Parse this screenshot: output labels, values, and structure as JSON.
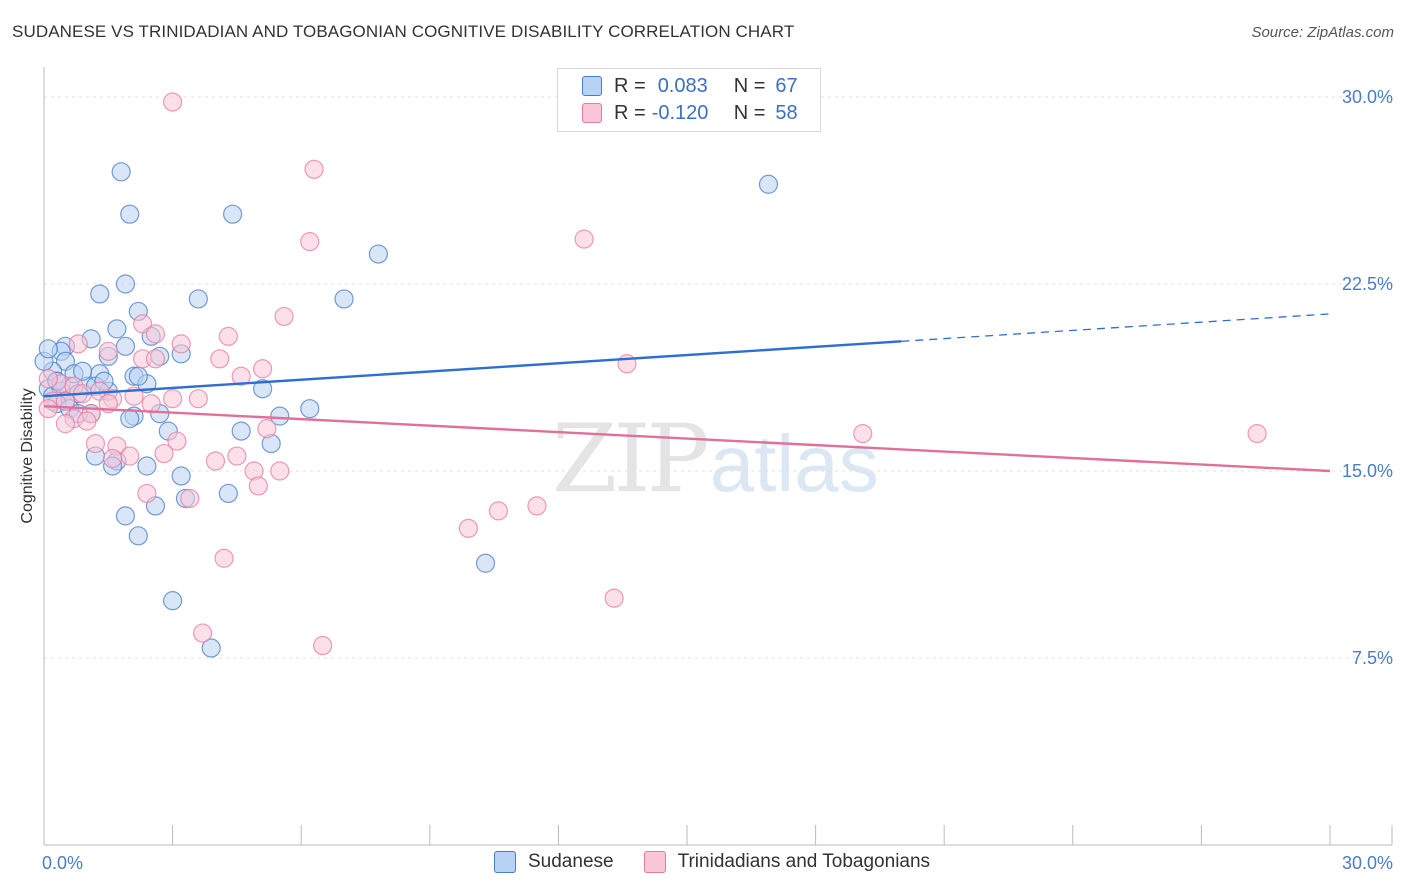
{
  "header": {
    "title": "SUDANESE VS TRINIDADIAN AND TOBAGONIAN COGNITIVE DISABILITY CORRELATION CHART",
    "source": "Source: ZipAtlas.com"
  },
  "watermark": {
    "zip": "ZIP",
    "atlas": "atlas"
  },
  "colors": {
    "blue": "#4a7cc7",
    "blue_fill": "#b8d2f3",
    "blue_line": "#2f6fd1",
    "pink": "#e87aa0",
    "pink_fill": "#f8c6d7",
    "pink_line": "#e0709a"
  },
  "legend": {
    "rows": [
      {
        "r_label": "R =",
        "r_value": "0.083",
        "n_label": "N =",
        "n_value": "67"
      },
      {
        "r_label": "R =",
        "r_value": "-0.120",
        "n_label": "N =",
        "n_value": "58"
      }
    ]
  },
  "bottom_legend": {
    "items": [
      {
        "label": "Sudanese"
      },
      {
        "label": "Trinidadians and Tobagonians"
      }
    ]
  },
  "chart_data": {
    "type": "scatter",
    "title": "SUDANESE VS TRINIDADIAN AND TOBAGONIAN COGNITIVE DISABILITY CORRELATION CHART",
    "xlabel": "",
    "ylabel": "Cognitive Disability",
    "xlim": [
      0,
      30
    ],
    "ylim": [
      0,
      31.5
    ],
    "x_tick_labels": [
      "0.0%",
      "30.0%"
    ],
    "y_ticks": [
      {
        "value": 30.0,
        "label": "30.0%"
      },
      {
        "value": 22.5,
        "label": "22.5%"
      },
      {
        "value": 15.0,
        "label": "15.0%"
      },
      {
        "value": 7.5,
        "label": "7.5%"
      }
    ],
    "series": [
      {
        "name": "Sudanese",
        "R": 0.083,
        "N": 67,
        "trend": {
          "x0": 0.0,
          "y0": 18.0,
          "x1": 20.0,
          "y1": 20.2,
          "dash_to_x": 30.0,
          "dash_to_y": 21.3
        },
        "points": [
          [
            1.8,
            27.0
          ],
          [
            16.9,
            26.5
          ],
          [
            2.0,
            25.3
          ],
          [
            4.4,
            25.3
          ],
          [
            7.8,
            23.7
          ],
          [
            1.9,
            22.5
          ],
          [
            1.3,
            22.1
          ],
          [
            3.6,
            21.9
          ],
          [
            7.0,
            21.9
          ],
          [
            2.2,
            21.4
          ],
          [
            1.7,
            20.7
          ],
          [
            2.5,
            20.4
          ],
          [
            1.1,
            20.3
          ],
          [
            0.5,
            20.0
          ],
          [
            1.9,
            20.0
          ],
          [
            0.4,
            19.8
          ],
          [
            3.2,
            19.7
          ],
          [
            1.5,
            19.6
          ],
          [
            2.7,
            19.6
          ],
          [
            0.5,
            19.4
          ],
          [
            0.2,
            19.0
          ],
          [
            0.0,
            19.4
          ],
          [
            1.3,
            18.9
          ],
          [
            2.1,
            18.8
          ],
          [
            0.3,
            18.6
          ],
          [
            0.6,
            18.4
          ],
          [
            1.0,
            18.4
          ],
          [
            1.2,
            18.4
          ],
          [
            2.4,
            18.5
          ],
          [
            5.1,
            18.3
          ],
          [
            0.1,
            18.3
          ],
          [
            0.4,
            18.2
          ],
          [
            0.8,
            18.1
          ],
          [
            1.5,
            18.2
          ],
          [
            0.2,
            18.0
          ],
          [
            0.5,
            17.8
          ],
          [
            0.3,
            17.7
          ],
          [
            0.6,
            17.5
          ],
          [
            1.1,
            17.3
          ],
          [
            2.7,
            17.3
          ],
          [
            6.2,
            17.5
          ],
          [
            0.8,
            17.3
          ],
          [
            2.1,
            17.2
          ],
          [
            2.0,
            17.1
          ],
          [
            5.5,
            17.2
          ],
          [
            2.9,
            16.6
          ],
          [
            4.6,
            16.6
          ],
          [
            5.3,
            16.1
          ],
          [
            1.2,
            15.6
          ],
          [
            1.7,
            15.4
          ],
          [
            1.6,
            15.2
          ],
          [
            2.4,
            15.2
          ],
          [
            3.2,
            14.8
          ],
          [
            4.3,
            14.1
          ],
          [
            3.3,
            13.9
          ],
          [
            2.6,
            13.6
          ],
          [
            1.9,
            13.2
          ],
          [
            2.2,
            12.4
          ],
          [
            10.3,
            11.3
          ],
          [
            3.0,
            9.8
          ],
          [
            3.9,
            7.9
          ],
          [
            0.3,
            18.6
          ],
          [
            0.7,
            18.9
          ],
          [
            1.4,
            18.6
          ],
          [
            2.2,
            18.8
          ],
          [
            0.9,
            19.0
          ],
          [
            0.1,
            19.9
          ]
        ]
      },
      {
        "name": "Trinidadians and Tobagonians",
        "R": -0.12,
        "N": 58,
        "trend": {
          "x0": 0.0,
          "y0": 17.6,
          "x1": 30.0,
          "y1": 15.0
        },
        "points": [
          [
            3.0,
            29.8
          ],
          [
            6.3,
            27.1
          ],
          [
            6.2,
            24.2
          ],
          [
            12.6,
            24.3
          ],
          [
            5.6,
            21.2
          ],
          [
            2.3,
            20.9
          ],
          [
            4.3,
            20.4
          ],
          [
            2.6,
            20.5
          ],
          [
            3.2,
            20.1
          ],
          [
            0.8,
            20.1
          ],
          [
            1.5,
            19.8
          ],
          [
            2.3,
            19.5
          ],
          [
            2.6,
            19.5
          ],
          [
            4.1,
            19.5
          ],
          [
            13.6,
            19.3
          ],
          [
            5.1,
            19.1
          ],
          [
            4.6,
            18.8
          ],
          [
            0.4,
            18.5
          ],
          [
            0.1,
            18.7
          ],
          [
            1.3,
            18.2
          ],
          [
            0.7,
            18.4
          ],
          [
            0.9,
            18.1
          ],
          [
            2.1,
            18.0
          ],
          [
            1.6,
            17.9
          ],
          [
            3.0,
            17.9
          ],
          [
            3.6,
            17.9
          ],
          [
            0.2,
            17.8
          ],
          [
            0.5,
            17.8
          ],
          [
            1.5,
            17.7
          ],
          [
            2.5,
            17.7
          ],
          [
            0.1,
            17.5
          ],
          [
            1.1,
            17.3
          ],
          [
            0.7,
            17.1
          ],
          [
            1.0,
            17.0
          ],
          [
            0.5,
            16.9
          ],
          [
            5.2,
            16.7
          ],
          [
            19.1,
            16.5
          ],
          [
            28.3,
            16.5
          ],
          [
            3.1,
            16.2
          ],
          [
            1.2,
            16.1
          ],
          [
            1.7,
            16.0
          ],
          [
            2.8,
            15.7
          ],
          [
            4.5,
            15.6
          ],
          [
            2.0,
            15.6
          ],
          [
            4.0,
            15.4
          ],
          [
            1.6,
            15.5
          ],
          [
            4.9,
            15.0
          ],
          [
            5.5,
            15.0
          ],
          [
            5.0,
            14.4
          ],
          [
            2.4,
            14.1
          ],
          [
            3.4,
            13.9
          ],
          [
            11.5,
            13.6
          ],
          [
            10.6,
            13.4
          ],
          [
            9.9,
            12.7
          ],
          [
            4.2,
            11.5
          ],
          [
            13.3,
            9.9
          ],
          [
            3.7,
            8.5
          ],
          [
            6.5,
            8.0
          ]
        ]
      }
    ]
  },
  "axis": {
    "ylabel": "Cognitive Disability"
  }
}
